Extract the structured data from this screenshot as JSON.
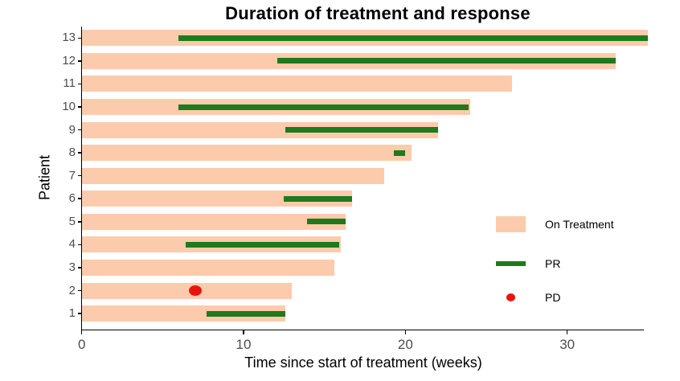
{
  "title": "Duration of treatment and response",
  "axes": {
    "x_title": "Time since start of treatment (weeks)",
    "y_title": "Patient",
    "x_ticks": [
      0,
      10,
      20,
      30
    ],
    "xlim": [
      0,
      35
    ]
  },
  "colors": {
    "on_treatment": "#FCCBAC",
    "pr": "#1E7A1E",
    "pd": "#E9150D",
    "axis_text": "#4D4D4D",
    "axis_line": "#000000",
    "title_text": "#000000"
  },
  "chart_data": {
    "type": "bar",
    "orientation": "horizontal",
    "title": "Duration of treatment and response",
    "xlabel": "Time since start of treatment (weeks)",
    "ylabel": "Patient",
    "xlim": [
      0,
      35
    ],
    "x_ticks": [
      0,
      10,
      20,
      30
    ],
    "grid": false,
    "legend_position": "inside-right",
    "legend": [
      {
        "label": "On Treatment",
        "type": "bar",
        "color": "#FCCBAC"
      },
      {
        "label": "PR",
        "type": "line",
        "color": "#1E7A1E"
      },
      {
        "label": "PD",
        "type": "dot",
        "color": "#E9150D"
      }
    ],
    "rows": [
      {
        "patient": 13,
        "on_treatment_weeks": 35.0,
        "pr": [
          6.0,
          35.0
        ],
        "pd": null
      },
      {
        "patient": 12,
        "on_treatment_weeks": 33.0,
        "pr": [
          12.1,
          33.0
        ],
        "pd": null
      },
      {
        "patient": 11,
        "on_treatment_weeks": 26.6,
        "pr": null,
        "pd": null
      },
      {
        "patient": 10,
        "on_treatment_weeks": 24.0,
        "pr": [
          6.0,
          23.9
        ],
        "pd": null
      },
      {
        "patient": 9,
        "on_treatment_weeks": 22.0,
        "pr": [
          12.6,
          22.0
        ],
        "pd": null
      },
      {
        "patient": 8,
        "on_treatment_weeks": 20.4,
        "pr": [
          19.3,
          20.0
        ],
        "pd": null
      },
      {
        "patient": 7,
        "on_treatment_weeks": 18.7,
        "pr": null,
        "pd": null
      },
      {
        "patient": 6,
        "on_treatment_weeks": 16.7,
        "pr": [
          12.5,
          16.7
        ],
        "pd": null
      },
      {
        "patient": 5,
        "on_treatment_weeks": 16.3,
        "pr": [
          13.9,
          16.3
        ],
        "pd": null
      },
      {
        "patient": 4,
        "on_treatment_weeks": 16.0,
        "pr": [
          6.4,
          15.9
        ],
        "pd": null
      },
      {
        "patient": 3,
        "on_treatment_weeks": 15.6,
        "pr": null,
        "pd": null
      },
      {
        "patient": 2,
        "on_treatment_weeks": 13.0,
        "pr": null,
        "pd": 7.0
      },
      {
        "patient": 1,
        "on_treatment_weeks": 12.6,
        "pr": [
          7.7,
          12.6
        ],
        "pd": null
      }
    ]
  }
}
